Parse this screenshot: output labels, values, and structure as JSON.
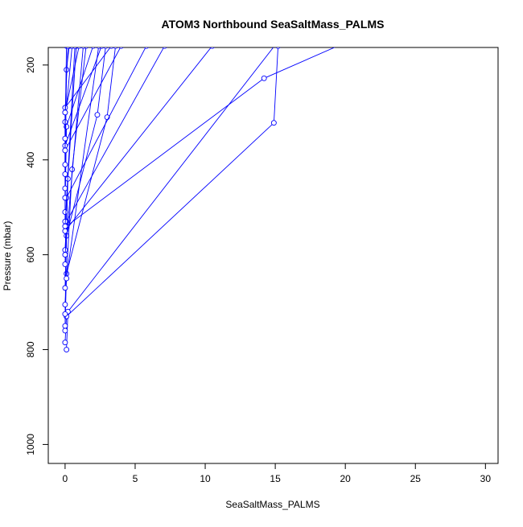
{
  "chart_data": {
    "type": "scatter",
    "title": "ATOM3 Northbound SeaSaltMass_PALMS",
    "xlabel": "SeaSaltMass_PALMS",
    "ylabel": "Pressure (mbar)",
    "xlim": [
      -1.2,
      30.9
    ],
    "ylim": [
      1040,
      163
    ],
    "y_reversed": true,
    "x_ticks": [
      "0",
      "5",
      "10",
      "15",
      "20",
      "25",
      "30"
    ],
    "y_ticks": [
      "200",
      "400",
      "600",
      "800",
      "1000"
    ],
    "grid": false,
    "legend": "none",
    "series_color": "#0000ff",
    "marker": "open-circle",
    "series": [
      {
        "x": [
          0.1,
          0.2,
          15.2
        ],
        "y": [
          800,
          720,
          150
        ]
      },
      {
        "x": [
          0.0,
          0.1,
          14.9,
          15.2
        ],
        "y": [
          785,
          730,
          322,
          160
        ]
      },
      {
        "x": [
          0.0,
          0.1,
          14.2,
          21.0
        ],
        "y": [
          760,
          540,
          228,
          140
        ]
      },
      {
        "x": [
          0.0,
          0.1,
          3.0,
          3.6
        ],
        "y": [
          750,
          640,
          310,
          160
        ]
      },
      {
        "x": [
          0.0,
          0.1,
          2.3,
          2.9
        ],
        "y": [
          725,
          560,
          305,
          160
        ]
      },
      {
        "x": [
          0.0,
          0.5,
          1.5
        ],
        "y": [
          705,
          420,
          160
        ]
      },
      {
        "x": [
          0.0,
          0.2,
          0.8
        ],
        "y": [
          670,
          440,
          160
        ]
      },
      {
        "x": [
          0.0,
          0.1,
          5.8
        ],
        "y": [
          620,
          480,
          160
        ]
      },
      {
        "x": [
          0.0,
          0.1,
          7.1
        ],
        "y": [
          590,
          530,
          160
        ]
      },
      {
        "x": [
          0.0,
          10.5
        ],
        "y": [
          550,
          160
        ]
      },
      {
        "x": [
          0.0,
          0.0,
          4.0
        ],
        "y": [
          530,
          380,
          160
        ]
      },
      {
        "x": [
          0.0,
          0.1,
          2.0
        ],
        "y": [
          510,
          330,
          160
        ]
      },
      {
        "x": [
          0.0,
          0.0,
          1.0
        ],
        "y": [
          480,
          300,
          160
        ]
      },
      {
        "x": [
          0.0,
          0.1,
          0.3
        ],
        "y": [
          460,
          210,
          160
        ]
      },
      {
        "x": [
          0.0,
          0.0,
          2.6
        ],
        "y": [
          430,
          370,
          160
        ]
      },
      {
        "x": [
          0.0,
          0.0,
          0.5
        ],
        "y": [
          410,
          320,
          160
        ]
      },
      {
        "x": [
          0.0,
          0.0,
          3.3
        ],
        "y": [
          380,
          290,
          160
        ]
      },
      {
        "x": [
          0.0,
          0.1
        ],
        "y": [
          355,
          160
        ]
      },
      {
        "x": [
          0.0,
          0.2
        ],
        "y": [
          300,
          160
        ]
      },
      {
        "x": [
          0.0,
          1.3
        ],
        "y": [
          600,
          160
        ]
      },
      {
        "x": [
          0.1,
          2.4
        ],
        "y": [
          650,
          160
        ]
      },
      {
        "x": [
          0.0,
          0.7
        ],
        "y": [
          540,
          160
        ]
      }
    ]
  }
}
